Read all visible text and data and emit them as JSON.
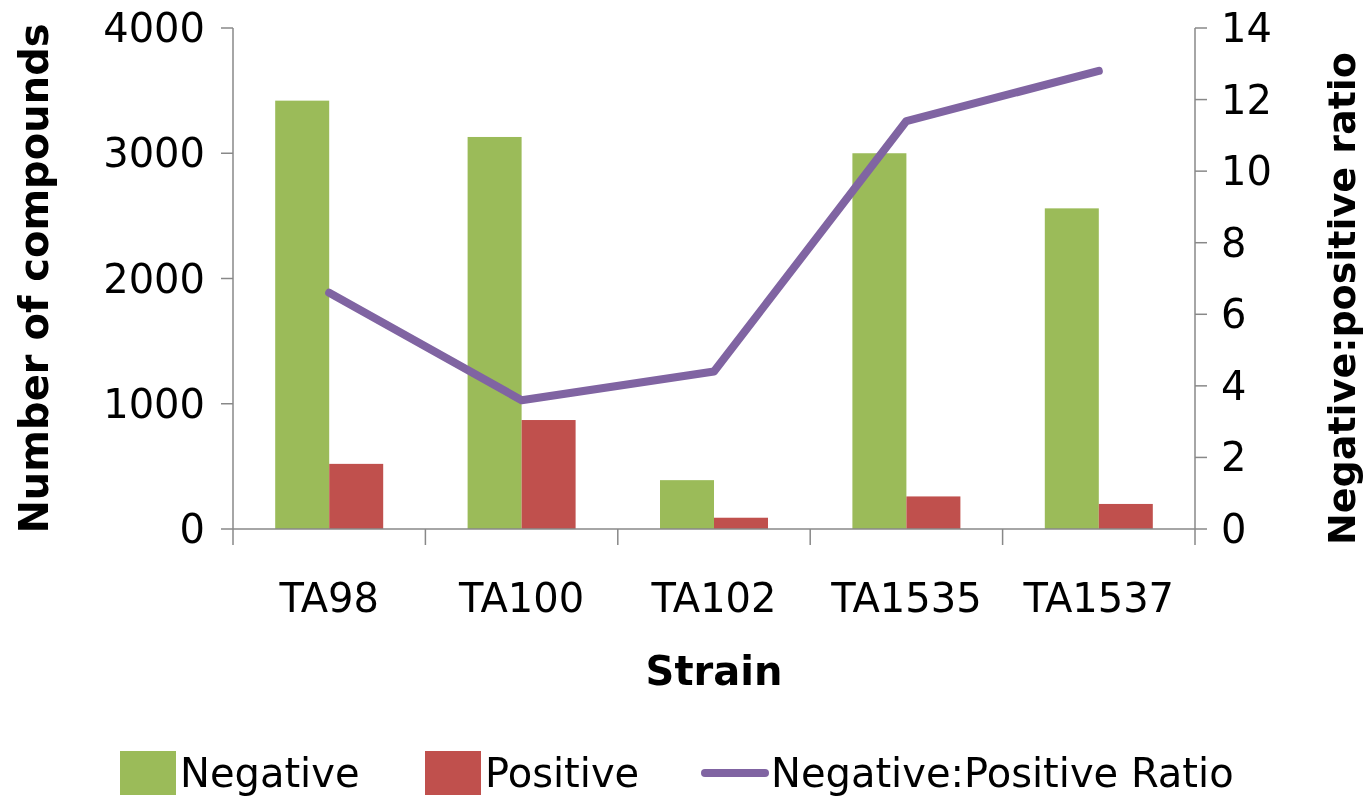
{
  "chart_data": {
    "type": "bar",
    "xlabel": "Strain",
    "ylabel": "Number of compounds",
    "y2label": "Negative:positive ratio",
    "categories": [
      "TA98",
      "TA100",
      "TA102",
      "TA1535",
      "TA1537"
    ],
    "series": [
      {
        "name": "Negative",
        "color": "#9bbb59",
        "values": [
          3420,
          3130,
          390,
          3000,
          2560
        ]
      },
      {
        "name": "Positive",
        "color": "#c0504d",
        "values": [
          520,
          870,
          90,
          260,
          200
        ]
      },
      {
        "name": "Negative:Positive Ratio",
        "type": "line",
        "axis": "y2",
        "color": "#8064a2",
        "values": [
          6.6,
          3.6,
          4.4,
          11.4,
          12.8
        ]
      }
    ],
    "ylim": [
      0,
      4000
    ],
    "yticks": [
      0,
      1000,
      2000,
      3000,
      4000
    ],
    "y2lim": [
      0,
      14
    ],
    "y2ticks": [
      0,
      2,
      4,
      6,
      8,
      10,
      12,
      14
    ],
    "grid": false,
    "legend": "bottom",
    "marker": "none",
    "line_style": "solid"
  }
}
